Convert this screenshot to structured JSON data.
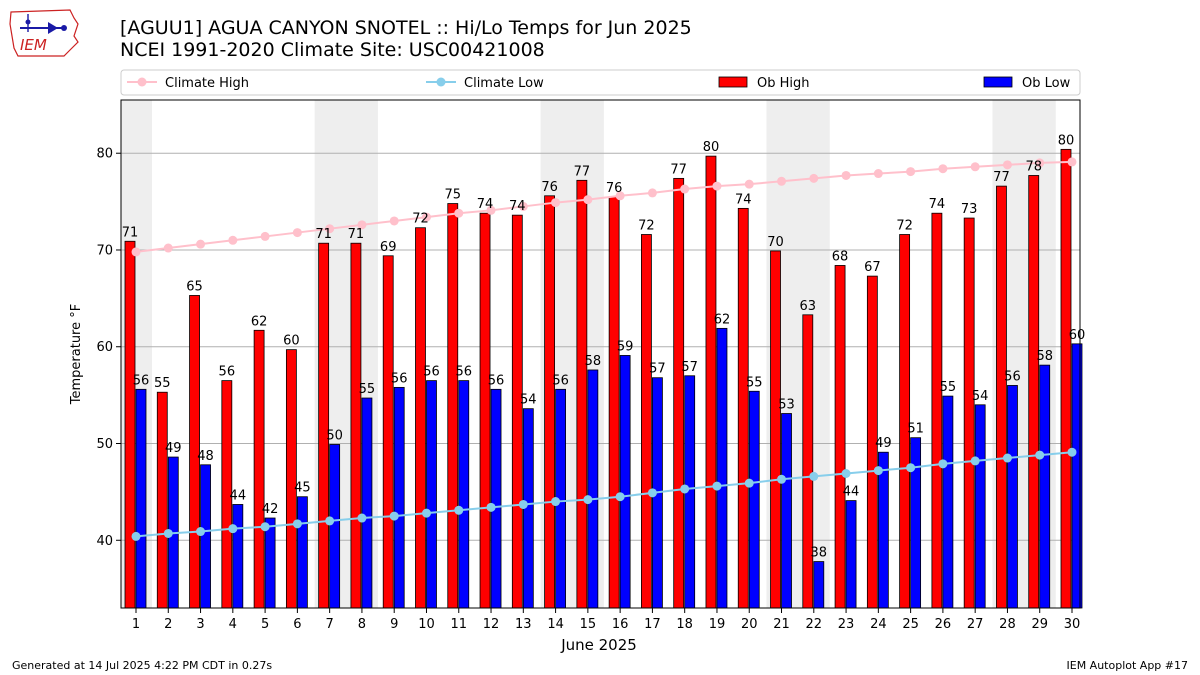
{
  "header": {
    "title_line1": "[AGUU1] AGUA CANYON SNOTEL :: Hi/Lo Temps for Jun 2025",
    "title_line2": "NCEI 1991-2020 Climate Site: USC00421008",
    "logo_text": "IEM"
  },
  "footer": {
    "generated": "Generated at 14 Jul 2025 4:22 PM CDT in 0.27s",
    "app": "IEM Autoplot App #17"
  },
  "chart_data": {
    "type": "bar",
    "xlabel": "June 2025",
    "ylabel": "Temperature °F",
    "ylim": [
      33,
      85.5
    ],
    "yticks": [
      40,
      50,
      60,
      70,
      80
    ],
    "grid": true,
    "legend_position": "top",
    "weekend_shading": [
      [
        1,
        1
      ],
      [
        7,
        8
      ],
      [
        14,
        15
      ],
      [
        21,
        22
      ],
      [
        28,
        29
      ]
    ],
    "categories": [
      "1",
      "2",
      "3",
      "4",
      "5",
      "6",
      "7",
      "8",
      "9",
      "10",
      "11",
      "12",
      "13",
      "14",
      "15",
      "16",
      "17",
      "18",
      "19",
      "20",
      "21",
      "22",
      "23",
      "24",
      "25",
      "26",
      "27",
      "28",
      "29",
      "30"
    ],
    "series": [
      {
        "name": "Climate High",
        "kind": "line",
        "color": "#ffc0cb",
        "values": [
          69.8,
          70.2,
          70.6,
          71.0,
          71.4,
          71.8,
          72.2,
          72.6,
          73.0,
          73.4,
          73.8,
          74.1,
          74.5,
          74.9,
          75.2,
          75.6,
          75.9,
          76.3,
          76.6,
          76.8,
          77.1,
          77.4,
          77.7,
          77.9,
          78.1,
          78.4,
          78.6,
          78.8,
          79.0,
          79.1
        ]
      },
      {
        "name": "Climate Low",
        "kind": "line",
        "color": "#87ceeb",
        "values": [
          40.4,
          40.7,
          40.9,
          41.2,
          41.4,
          41.7,
          42.0,
          42.3,
          42.5,
          42.8,
          43.1,
          43.4,
          43.7,
          44.0,
          44.2,
          44.5,
          44.9,
          45.3,
          45.6,
          45.9,
          46.3,
          46.6,
          46.9,
          47.2,
          47.5,
          47.9,
          48.2,
          48.5,
          48.8,
          49.1
        ]
      },
      {
        "name": "Ob High",
        "kind": "bar",
        "color": "#ff0000",
        "values": [
          71,
          55,
          65,
          56,
          62,
          60,
          71,
          71,
          69,
          72,
          75,
          74,
          74,
          76,
          77,
          76,
          72,
          77,
          80,
          74,
          70,
          63,
          68,
          67,
          72,
          74,
          73,
          77,
          78,
          80
        ],
        "heights": [
          70.9,
          55.3,
          65.3,
          56.5,
          61.7,
          59.7,
          70.7,
          70.7,
          69.4,
          72.3,
          74.8,
          73.8,
          73.6,
          75.6,
          77.2,
          75.5,
          71.6,
          77.4,
          79.7,
          74.3,
          69.9,
          63.3,
          68.4,
          67.3,
          71.6,
          73.8,
          73.3,
          76.6,
          77.7,
          80.4
        ]
      },
      {
        "name": "Ob Low",
        "kind": "bar",
        "color": "#0000ff",
        "values": [
          56,
          49,
          48,
          44,
          42,
          45,
          50,
          55,
          56,
          56,
          56,
          56,
          54,
          56,
          58,
          59,
          57,
          57,
          62,
          55,
          53,
          38,
          44,
          49,
          51,
          55,
          54,
          56,
          58,
          60
        ],
        "heights": [
          55.6,
          48.6,
          47.8,
          43.7,
          42.3,
          44.5,
          49.9,
          54.7,
          55.8,
          56.5,
          56.5,
          55.6,
          53.6,
          55.6,
          57.6,
          59.1,
          56.8,
          57.0,
          61.9,
          55.4,
          53.1,
          37.8,
          44.1,
          49.1,
          50.6,
          54.9,
          54.0,
          56.0,
          58.1,
          60.3
        ]
      }
    ]
  }
}
